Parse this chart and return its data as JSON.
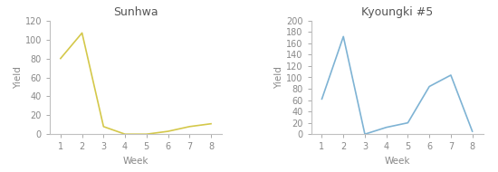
{
  "sunhwa": {
    "title": "Sunhwa",
    "weeks": [
      1,
      2,
      3,
      4,
      5,
      6,
      7,
      8
    ],
    "yields": [
      80,
      107,
      8,
      0,
      0,
      3,
      8,
      11
    ],
    "color": "#d4c84a",
    "xlabel": "Week",
    "ylabel": "Yield",
    "ylim": [
      0,
      120
    ],
    "yticks": [
      0,
      20,
      40,
      60,
      80,
      100,
      120
    ]
  },
  "kyoungki": {
    "title": "Kyoungki #5",
    "weeks": [
      1,
      2,
      3,
      4,
      5,
      6,
      7,
      8
    ],
    "yields": [
      62,
      172,
      0,
      12,
      20,
      84,
      104,
      5
    ],
    "color": "#7eb3d4",
    "xlabel": "Week",
    "ylabel": "Yield",
    "ylim": [
      0,
      200
    ],
    "yticks": [
      0,
      20,
      40,
      60,
      80,
      100,
      120,
      140,
      160,
      180,
      200
    ]
  },
  "background_color": "#ffffff",
  "title_fontsize": 9,
  "label_fontsize": 7.5,
  "tick_fontsize": 7,
  "spine_color": "#c0c0c0",
  "text_color": "#888888",
  "title_color": "#555555"
}
